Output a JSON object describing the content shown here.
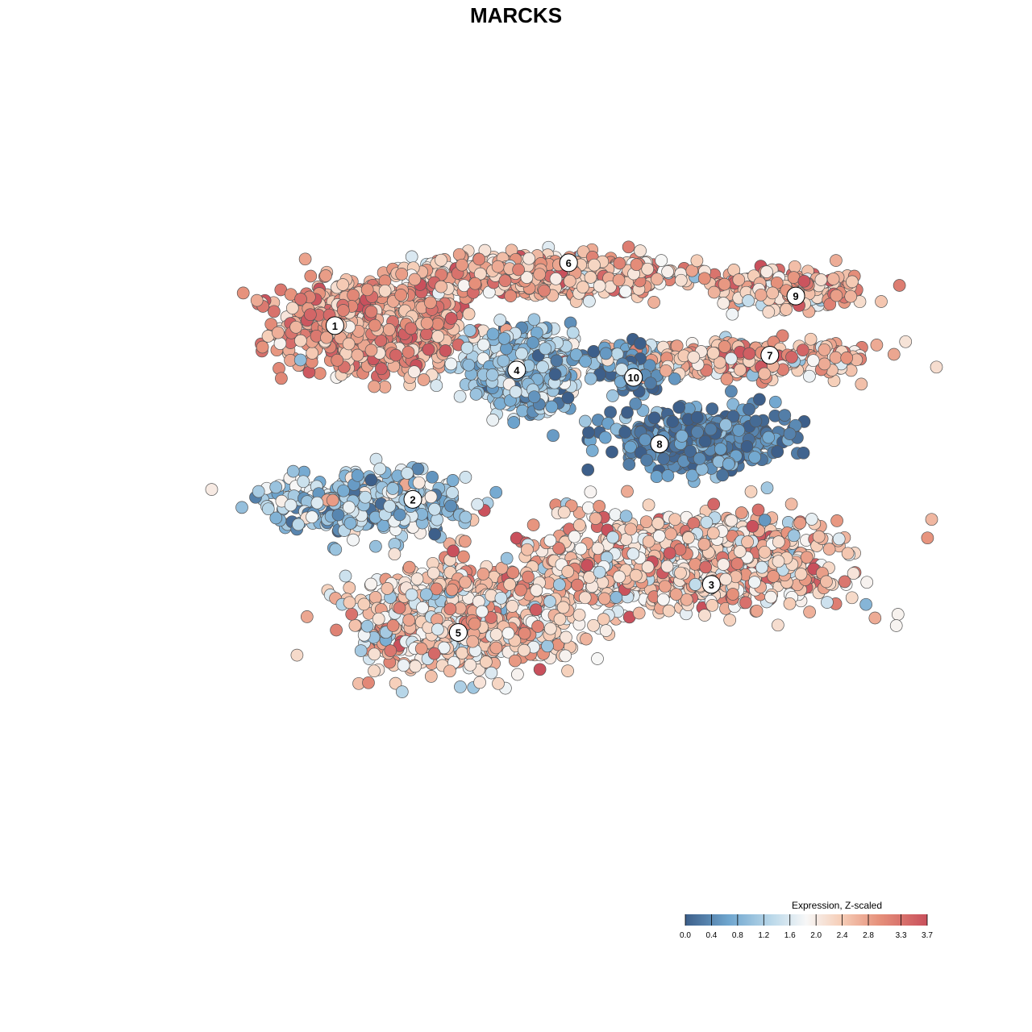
{
  "chart_data": {
    "type": "scatter",
    "title": "MARCKS",
    "xlabel": "",
    "ylabel": "",
    "grid": false,
    "legend": {
      "title": "Expression, Z-scaled",
      "placement": "bottom-right",
      "ticks": [
        "0.0",
        "0.4",
        "0.8",
        "1.2",
        "1.6",
        "2.0",
        "2.4",
        "2.8",
        "3.3",
        "3.7"
      ],
      "range": [
        0.0,
        3.7
      ]
    },
    "colors": {
      "low": "#3d5f8a",
      "mid_low": "#6fa6cf",
      "light_blue": "#bcd9ea",
      "neutral": "#f7f7f7",
      "light_red": "#f6cfb9",
      "mid_high": "#e6917b",
      "high": "#c9505c",
      "marker_edge": "#555555"
    },
    "clusters": [
      {
        "id": "1",
        "cx": 22,
        "cy": 52,
        "rx": 14,
        "ry": 12,
        "mean": 2.85,
        "sd": 0.45,
        "n": 900
      },
      {
        "id": "6",
        "cx": 48,
        "cy": 66,
        "rx": 20,
        "ry": 5,
        "mean": 2.55,
        "sd": 0.5,
        "n": 650
      },
      {
        "id": "4",
        "cx": 45,
        "cy": 40,
        "rx": 8,
        "ry": 9,
        "mean": 1.0,
        "sd": 0.45,
        "n": 700
      },
      {
        "id": "10",
        "cx": 62,
        "cy": 41,
        "rx": 5,
        "ry": 6,
        "mean": 0.6,
        "sd": 0.5,
        "n": 150
      },
      {
        "id": "9",
        "cx": 85,
        "cy": 62,
        "rx": 11,
        "ry": 5,
        "mean": 2.5,
        "sd": 0.55,
        "n": 260
      },
      {
        "id": "7",
        "cx": 78,
        "cy": 43,
        "rx": 20,
        "ry": 5,
        "mean": 2.6,
        "sd": 0.55,
        "n": 330
      },
      {
        "id": "8",
        "cx": 72,
        "cy": 21,
        "rx": 14,
        "ry": 8,
        "mean": 0.35,
        "sd": 0.35,
        "n": 430
      },
      {
        "id": "2",
        "cx": 21,
        "cy": 4,
        "rx": 14,
        "ry": 8,
        "mean": 1.1,
        "sd": 0.6,
        "n": 420
      },
      {
        "id": "3",
        "cx": 70,
        "cy": -12,
        "rx": 24,
        "ry": 12,
        "mean": 2.4,
        "sd": 0.6,
        "n": 1100
      },
      {
        "id": "5",
        "cx": 36,
        "cy": -27,
        "rx": 16,
        "ry": 13,
        "mean": 2.25,
        "sd": 0.6,
        "n": 900
      }
    ],
    "label_positions": [
      {
        "id": "1",
        "x": 16,
        "y": 52
      },
      {
        "id": "6",
        "x": 52,
        "y": 69
      },
      {
        "id": "4",
        "x": 44,
        "y": 40
      },
      {
        "id": "10",
        "x": 62,
        "y": 38
      },
      {
        "id": "9",
        "x": 87,
        "y": 60
      },
      {
        "id": "7",
        "x": 83,
        "y": 44
      },
      {
        "id": "8",
        "x": 66,
        "y": 20
      },
      {
        "id": "2",
        "x": 28,
        "y": 5
      },
      {
        "id": "3",
        "x": 74,
        "y": -18
      },
      {
        "id": "5",
        "x": 35,
        "y": -31
      }
    ],
    "xlim": [
      -12,
      106
    ],
    "ylim": [
      -102,
      103
    ]
  }
}
